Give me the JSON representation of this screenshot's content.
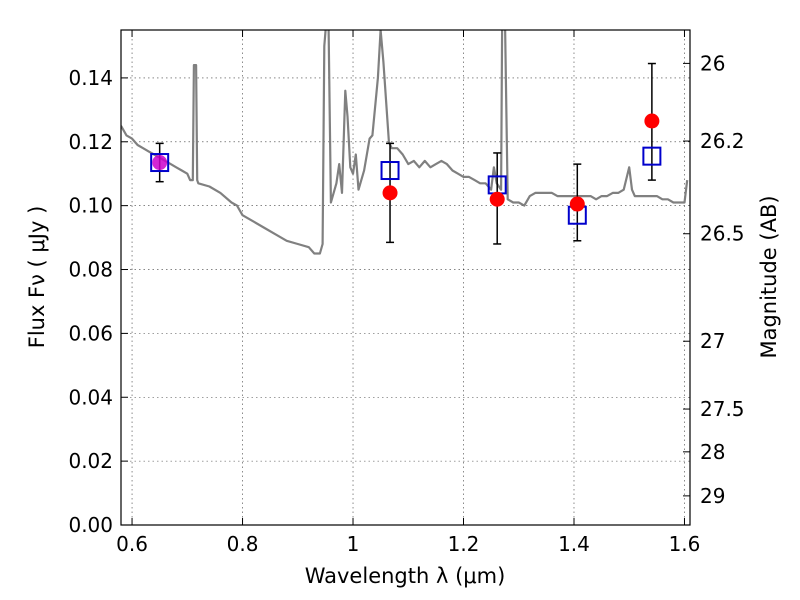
{
  "chart_data": {
    "type": "scatter",
    "title": "",
    "xlabel": "Wavelength  λ (μm)",
    "ylabel": "Flux  Fν  ( μJy )",
    "ylabel_right": "Magnitude (AB)",
    "xlim": [
      0.58,
      1.61
    ],
    "ylim": [
      0.0,
      0.155
    ],
    "grid": true,
    "x_ticks": [
      0.6,
      0.8,
      1.0,
      1.2,
      1.4,
      1.6
    ],
    "x_tick_labels": [
      "0.6",
      "0.8",
      "1",
      "1.2",
      "1.4",
      "1.6"
    ],
    "y_ticks": [
      0.0,
      0.02,
      0.04,
      0.06,
      0.08,
      0.1,
      0.12,
      0.14
    ],
    "y_tick_labels": [
      "0.00",
      "0.02",
      "0.04",
      "0.06",
      "0.08",
      "0.10",
      "0.12",
      "0.14"
    ],
    "right_ticks": [
      26,
      26.2,
      26.5,
      27,
      27.5,
      28,
      29
    ],
    "right_tick_labels": [
      "26",
      "26.2",
      "26.5",
      "27",
      "27.5",
      "28",
      "29"
    ],
    "model_spectrum": {
      "color": "#808080",
      "points": [
        [
          0.58,
          0.125
        ],
        [
          0.59,
          0.122
        ],
        [
          0.6,
          0.121
        ],
        [
          0.61,
          0.119
        ],
        [
          0.62,
          0.118
        ],
        [
          0.63,
          0.117
        ],
        [
          0.64,
          0.116
        ],
        [
          0.65,
          0.115
        ],
        [
          0.66,
          0.114
        ],
        [
          0.67,
          0.113
        ],
        [
          0.68,
          0.112
        ],
        [
          0.69,
          0.111
        ],
        [
          0.7,
          0.11
        ],
        [
          0.705,
          0.108
        ],
        [
          0.71,
          0.108
        ],
        [
          0.712,
          0.144
        ],
        [
          0.716,
          0.144
        ],
        [
          0.718,
          0.108
        ],
        [
          0.72,
          0.107
        ],
        [
          0.74,
          0.106
        ],
        [
          0.76,
          0.104
        ],
        [
          0.78,
          0.101
        ],
        [
          0.79,
          0.1
        ],
        [
          0.8,
          0.097
        ],
        [
          0.82,
          0.095
        ],
        [
          0.84,
          0.093
        ],
        [
          0.86,
          0.091
        ],
        [
          0.88,
          0.089
        ],
        [
          0.9,
          0.088
        ],
        [
          0.92,
          0.087
        ],
        [
          0.93,
          0.085
        ],
        [
          0.94,
          0.085
        ],
        [
          0.945,
          0.088
        ],
        [
          0.948,
          0.15
        ],
        [
          0.955,
          0.165
        ],
        [
          0.96,
          0.101
        ],
        [
          0.97,
          0.107
        ],
        [
          0.975,
          0.113
        ],
        [
          0.98,
          0.104
        ],
        [
          0.986,
          0.136
        ],
        [
          0.99,
          0.128
        ],
        [
          0.995,
          0.112
        ],
        [
          1.0,
          0.11
        ],
        [
          1.005,
          0.116
        ],
        [
          1.01,
          0.105
        ],
        [
          1.02,
          0.111
        ],
        [
          1.03,
          0.121
        ],
        [
          1.035,
          0.122
        ],
        [
          1.045,
          0.14
        ],
        [
          1.05,
          0.155
        ],
        [
          1.055,
          0.145
        ],
        [
          1.065,
          0.12
        ],
        [
          1.07,
          0.118
        ],
        [
          1.08,
          0.118
        ],
        [
          1.09,
          0.116
        ],
        [
          1.1,
          0.113
        ],
        [
          1.11,
          0.114
        ],
        [
          1.12,
          0.112
        ],
        [
          1.13,
          0.114
        ],
        [
          1.14,
          0.112
        ],
        [
          1.15,
          0.113
        ],
        [
          1.16,
          0.114
        ],
        [
          1.17,
          0.113
        ],
        [
          1.18,
          0.111
        ],
        [
          1.19,
          0.11
        ],
        [
          1.2,
          0.109
        ],
        [
          1.21,
          0.109
        ],
        [
          1.22,
          0.108
        ],
        [
          1.23,
          0.107
        ],
        [
          1.24,
          0.107
        ],
        [
          1.245,
          0.106
        ],
        [
          1.25,
          0.105
        ],
        [
          1.255,
          0.112
        ],
        [
          1.26,
          0.107
        ],
        [
          1.268,
          0.105
        ],
        [
          1.27,
          0.16
        ],
        [
          1.275,
          0.16
        ],
        [
          1.28,
          0.102
        ],
        [
          1.29,
          0.101
        ],
        [
          1.3,
          0.101
        ],
        [
          1.31,
          0.1
        ],
        [
          1.32,
          0.103
        ],
        [
          1.33,
          0.104
        ],
        [
          1.34,
          0.104
        ],
        [
          1.35,
          0.104
        ],
        [
          1.36,
          0.104
        ],
        [
          1.37,
          0.103
        ],
        [
          1.38,
          0.103
        ],
        [
          1.39,
          0.103
        ],
        [
          1.4,
          0.103
        ],
        [
          1.41,
          0.103
        ],
        [
          1.42,
          0.103
        ],
        [
          1.43,
          0.103
        ],
        [
          1.44,
          0.102
        ],
        [
          1.45,
          0.103
        ],
        [
          1.46,
          0.103
        ],
        [
          1.47,
          0.104
        ],
        [
          1.48,
          0.104
        ],
        [
          1.49,
          0.105
        ],
        [
          1.5,
          0.112
        ],
        [
          1.505,
          0.105
        ],
        [
          1.51,
          0.103
        ],
        [
          1.52,
          0.103
        ],
        [
          1.53,
          0.103
        ],
        [
          1.54,
          0.103
        ],
        [
          1.55,
          0.103
        ],
        [
          1.56,
          0.102
        ],
        [
          1.57,
          0.102
        ],
        [
          1.58,
          0.101
        ],
        [
          1.59,
          0.101
        ],
        [
          1.6,
          0.101
        ],
        [
          1.605,
          0.108
        ]
      ]
    },
    "observed": {
      "color": "#ff0000",
      "points": [
        {
          "x": 0.65,
          "y": 0.1135,
          "err_low": 0.006,
          "err_high": 0.006
        },
        {
          "x": 1.067,
          "y": 0.104,
          "err_low": 0.0155,
          "err_high": 0.0155
        },
        {
          "x": 1.261,
          "y": 0.102,
          "err_low": 0.014,
          "err_high": 0.0145
        },
        {
          "x": 1.406,
          "y": 0.1005,
          "err_low": 0.0115,
          "err_high": 0.0125
        },
        {
          "x": 1.541,
          "y": 0.1265,
          "err_low": 0.0185,
          "err_high": 0.018
        }
      ]
    },
    "model_photometry": {
      "color": "#0000cc",
      "points": [
        {
          "x": 0.65,
          "y": 0.1135
        },
        {
          "x": 1.067,
          "y": 0.111
        },
        {
          "x": 1.261,
          "y": 0.1065
        },
        {
          "x": 1.406,
          "y": 0.097
        },
        {
          "x": 1.541,
          "y": 0.1155
        }
      ]
    }
  }
}
